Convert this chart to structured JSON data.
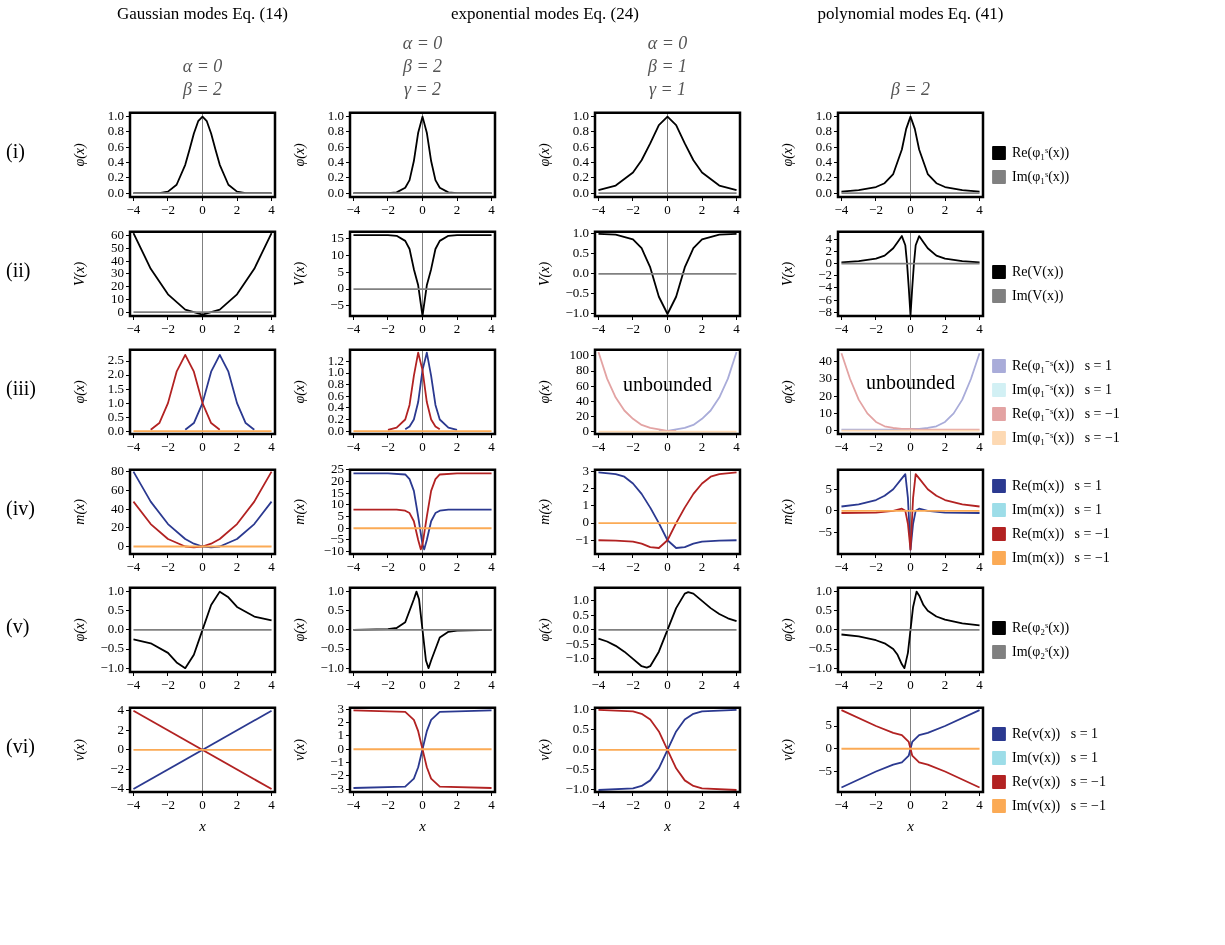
{
  "chart_data": [
    {
      "type": "line",
      "title": "Gaussian modes Eq. (14)",
      "subtitle": "α = 0\nβ = 2",
      "ylabel": "φ(x)",
      "annotations": [
        "(i)"
      ],
      "xlim": [
        -4.2,
        4.2
      ],
      "xticks": [
        -4,
        -2,
        0,
        2,
        4
      ],
      "ylim": [
        -0.05,
        1.05
      ],
      "yticks": [
        {
          "value": 0,
          "label": "0.0"
        },
        0.2,
        0.4,
        0.6,
        0.8,
        {
          "value": 1,
          "label": "1.0"
        }
      ],
      "ref_lines": [
        {
          "axis": "x",
          "value": 0,
          "color": "#808080"
        }
      ],
      "series": [
        {
          "color": "#000000",
          "x": [
            -4,
            -3,
            -2.5,
            -2,
            -1.5,
            -1,
            -0.75,
            -0.5,
            -0.25,
            0,
            0.25,
            0.5,
            0.75,
            1,
            1.5,
            2,
            2.5,
            3,
            4
          ],
          "values": [
            0,
            0,
            0,
            0.02,
            0.11,
            0.37,
            0.57,
            0.78,
            0.94,
            1,
            0.94,
            0.78,
            0.57,
            0.37,
            0.11,
            0.02,
            0,
            0,
            0
          ]
        },
        {
          "color": "#808080",
          "x": [
            -4,
            4
          ],
          "values": [
            0,
            0
          ]
        }
      ]
    },
    {
      "type": "line",
      "title": "exponential modes Eq. (24)",
      "subtitle": "α = 0\nβ = 2\nγ = 2",
      "ylabel": "φ(x)",
      "xlim": [
        -4.2,
        4.2
      ],
      "xticks": [
        -4,
        -2,
        0,
        2,
        4
      ],
      "ylim": [
        -0.05,
        1.05
      ],
      "yticks": [
        {
          "value": 0,
          "label": "0.0"
        },
        0.2,
        0.4,
        0.6,
        0.8,
        {
          "value": 1,
          "label": "1.0"
        }
      ],
      "ref_lines": [
        {
          "axis": "x",
          "value": 0,
          "color": "#808080"
        }
      ],
      "series": [
        {
          "color": "#000000",
          "x": [
            -4,
            -2,
            -1.5,
            -1,
            -0.75,
            -0.5,
            -0.25,
            0,
            0.25,
            0.5,
            0.75,
            1,
            1.5,
            2,
            4
          ],
          "values": [
            0,
            0,
            0.01,
            0.07,
            0.17,
            0.42,
            0.79,
            1,
            0.79,
            0.42,
            0.17,
            0.07,
            0.01,
            0,
            0
          ]
        },
        {
          "color": "#808080",
          "x": [
            -4,
            4
          ],
          "values": [
            0,
            0
          ]
        }
      ]
    },
    {
      "type": "line",
      "subtitle": "α = 0\nβ = 1\nγ = 1",
      "ylabel": "φ(x)",
      "xlim": [
        -4.2,
        4.2
      ],
      "xticks": [
        -4,
        -2,
        0,
        2,
        4
      ],
      "ylim": [
        -0.05,
        1.05
      ],
      "yticks": [
        {
          "value": 0,
          "label": "0.0"
        },
        0.2,
        0.4,
        0.6,
        0.8,
        {
          "value": 1,
          "label": "1.0"
        }
      ],
      "ref_lines": [
        {
          "axis": "x",
          "value": 0,
          "color": "#808080"
        }
      ],
      "series": [
        {
          "color": "#000000",
          "x": [
            -4,
            -3,
            -2,
            -1.5,
            -1,
            -0.5,
            0,
            0.5,
            1,
            1.5,
            2,
            3,
            4
          ],
          "values": [
            0.04,
            0.1,
            0.27,
            0.43,
            0.65,
            0.89,
            1,
            0.89,
            0.65,
            0.43,
            0.27,
            0.1,
            0.04
          ]
        },
        {
          "color": "#808080",
          "x": [
            -4,
            4
          ],
          "values": [
            0,
            0
          ]
        }
      ]
    },
    {
      "type": "line",
      "title": "polynomial modes Eq. (41)",
      "subtitle": "β = 2",
      "ylabel": "φ(x)",
      "legend": "right",
      "xlim": [
        -4.2,
        4.2
      ],
      "xticks": [
        -4,
        -2,
        0,
        2,
        4
      ],
      "ylim": [
        -0.05,
        1.05
      ],
      "yticks": [
        {
          "value": 0,
          "label": "0.0"
        },
        0.2,
        0.4,
        0.6,
        0.8,
        {
          "value": 1,
          "label": "1.0"
        }
      ],
      "ref_lines": [
        {
          "axis": "x",
          "value": 0,
          "color": "#808080"
        }
      ],
      "series": [
        {
          "name": "Re(φ₁ˢ(x))",
          "color": "#000000",
          "x": [
            -4,
            -3,
            -2,
            -1.5,
            -1,
            -0.5,
            -0.25,
            0,
            0.25,
            0.5,
            1,
            1.5,
            2,
            3,
            4
          ],
          "values": [
            0.02,
            0.04,
            0.08,
            0.13,
            0.25,
            0.57,
            0.84,
            1,
            0.84,
            0.57,
            0.25,
            0.13,
            0.08,
            0.04,
            0.02
          ]
        },
        {
          "name": "Im(φ₁ˢ(x))",
          "color": "#808080",
          "x": [
            -4,
            4
          ],
          "values": [
            0,
            0
          ]
        }
      ]
    },
    {
      "type": "line",
      "ylabel": "V(x)",
      "annotations": [
        "(ii)"
      ],
      "xlim": [
        -4.2,
        4.2
      ],
      "xticks": [
        -4,
        -2,
        0,
        2,
        4
      ],
      "ylim": [
        -3,
        63
      ],
      "yticks": [
        0,
        10,
        20,
        30,
        40,
        50,
        60
      ],
      "ref_lines": [
        {
          "axis": "x",
          "value": 0,
          "color": "#808080"
        }
      ],
      "series": [
        {
          "color": "#000000",
          "x": [
            -4,
            -3,
            -2,
            -1,
            0,
            1,
            2,
            3,
            4
          ],
          "values": [
            62,
            34,
            14,
            2,
            -2,
            2,
            14,
            34,
            62
          ]
        },
        {
          "color": "#808080",
          "x": [
            -4,
            4
          ],
          "values": [
            0,
            0
          ]
        }
      ]
    },
    {
      "type": "line",
      "ylabel": "V(x)",
      "xlim": [
        -4.2,
        4.2
      ],
      "xticks": [
        -4,
        -2,
        0,
        2,
        4
      ],
      "ylim": [
        -8,
        17
      ],
      "yticks": [
        -5,
        0,
        5,
        10,
        15
      ],
      "ref_lines": [
        {
          "axis": "x",
          "value": 0,
          "color": "#808080"
        }
      ],
      "series": [
        {
          "color": "#000000",
          "x": [
            -4,
            -2,
            -1.5,
            -1,
            -0.75,
            -0.5,
            -0.25,
            0,
            0.25,
            0.5,
            0.75,
            1,
            1.5,
            2,
            4
          ],
          "values": [
            16,
            16,
            15.8,
            14.3,
            11.9,
            5.9,
            1.1,
            -8,
            1.1,
            5.9,
            11.9,
            14.3,
            15.8,
            16,
            16
          ]
        },
        {
          "color": "#808080",
          "x": [
            -4,
            4
          ],
          "values": [
            0,
            0
          ]
        }
      ]
    },
    {
      "type": "line",
      "ylabel": "V(x)",
      "xlim": [
        -4.2,
        4.2
      ],
      "xticks": [
        -4,
        -2,
        0,
        2,
        4
      ],
      "ylim": [
        -1.05,
        1.05
      ],
      "yticks": [
        {
          "value": -1,
          "label": "−1.0"
        },
        -0.5,
        {
          "value": 0,
          "label": "0.0"
        },
        0.5,
        {
          "value": 1,
          "label": "1.0"
        }
      ],
      "ref_lines": [
        {
          "axis": "x",
          "value": 0,
          "color": "#808080"
        }
      ],
      "series": [
        {
          "color": "#000000",
          "x": [
            -4,
            -3,
            -2,
            -1.5,
            -1,
            -0.5,
            0,
            0.5,
            1,
            1.5,
            2,
            3,
            4
          ],
          "values": [
            1,
            0.98,
            0.86,
            0.64,
            0.16,
            -0.57,
            -1,
            -0.57,
            0.16,
            0.64,
            0.86,
            0.98,
            1
          ]
        },
        {
          "color": "#808080",
          "x": [
            -4,
            4
          ],
          "values": [
            0,
            0
          ]
        }
      ]
    },
    {
      "type": "line",
      "ylabel": "V(x)",
      "legend": "right",
      "xlim": [
        -4.2,
        4.2
      ],
      "xticks": [
        -4,
        -2,
        0,
        2,
        4
      ],
      "ylim": [
        -8.6,
        5.2
      ],
      "yticks": [
        -8,
        -6,
        -4,
        -2,
        0,
        2,
        4
      ],
      "ref_lines": [
        {
          "axis": "x",
          "value": 0,
          "color": "#808080"
        }
      ],
      "series": [
        {
          "name": "Re(V(x))",
          "color": "#000000",
          "x": [
            -4,
            -3,
            -2,
            -1.5,
            -1,
            -0.75,
            -0.5,
            -0.3,
            -0.2,
            -0.1,
            0,
            0.1,
            0.2,
            0.3,
            0.5,
            0.75,
            1,
            1.5,
            2,
            3,
            4
          ],
          "values": [
            0.2,
            0.4,
            0.8,
            1.3,
            2.5,
            3.5,
            4.5,
            3,
            0,
            -4,
            -8.5,
            -4,
            0,
            3,
            4.5,
            3.5,
            2.5,
            1.3,
            0.8,
            0.4,
            0.2
          ]
        },
        {
          "name": "Im(V(x))",
          "color": "#808080",
          "x": [
            -4,
            4
          ],
          "values": [
            0,
            0
          ]
        }
      ]
    },
    {
      "type": "line",
      "ylabel": "φ(x)",
      "annotations": [
        "(iii)"
      ],
      "xlim": [
        -4.2,
        4.2
      ],
      "xticks": [
        -4,
        -2,
        0,
        2,
        4
      ],
      "ylim": [
        -0.1,
        2.9
      ],
      "yticks": [
        {
          "value": 0,
          "label": "0.0"
        },
        0.5,
        {
          "value": 1,
          "label": "1.0"
        },
        1.5,
        {
          "value": 2,
          "label": "2.0"
        },
        2.5
      ],
      "ref_lines": [
        {
          "axis": "x",
          "value": 0,
          "color": "#808080"
        }
      ],
      "series": [
        {
          "color": "#2b3990",
          "x": [
            -1,
            -0.5,
            0,
            0.5,
            1,
            1.5,
            2,
            2.5,
            3
          ],
          "values": [
            0.05,
            0.29,
            1,
            2.12,
            2.72,
            2.12,
            1,
            0.29,
            0.05
          ]
        },
        {
          "color": "#b22222",
          "x": [
            -3,
            -2.5,
            -2,
            -1.5,
            -1,
            -0.5,
            0,
            0.5,
            1
          ],
          "values": [
            0.05,
            0.29,
            1,
            2.12,
            2.72,
            2.12,
            1,
            0.29,
            0.05
          ]
        },
        {
          "color": "#fbaa55",
          "x": [
            -4,
            4
          ],
          "values": [
            0,
            0
          ]
        }
      ]
    },
    {
      "type": "line",
      "ylabel": "φ(x)",
      "xlim": [
        -4.2,
        4.2
      ],
      "xticks": [
        -4,
        -2,
        0,
        2,
        4
      ],
      "ylim": [
        -0.05,
        1.4
      ],
      "yticks": [
        {
          "value": 0,
          "label": "0.0"
        },
        0.2,
        0.4,
        0.6,
        0.8,
        {
          "value": 1,
          "label": "1.0"
        },
        1.2
      ],
      "ref_lines": [
        {
          "axis": "x",
          "value": 0,
          "color": "#808080"
        }
      ],
      "series": [
        {
          "color": "#2b3990",
          "x": [
            -1,
            -0.75,
            -0.5,
            -0.25,
            0,
            0.25,
            0.5,
            0.75,
            1,
            1.5,
            2
          ],
          "values": [
            0.03,
            0.08,
            0.2,
            0.5,
            1.05,
            1.35,
            0.95,
            0.45,
            0.2,
            0.06,
            0.02
          ]
        },
        {
          "color": "#b22222",
          "x": [
            -2,
            -1.5,
            -1,
            -0.75,
            -0.5,
            -0.25,
            0,
            0.25,
            0.5,
            0.75,
            1
          ],
          "values": [
            0.02,
            0.06,
            0.2,
            0.45,
            0.95,
            1.35,
            1.05,
            0.5,
            0.2,
            0.08,
            0.03
          ]
        },
        {
          "color": "#fbaa55",
          "x": [
            -4,
            4
          ],
          "values": [
            0,
            0
          ]
        }
      ]
    },
    {
      "type": "line",
      "ylabel": "φ(x)",
      "annotations": [
        {
          "text": "unbounded",
          "x": 0,
          "y": 60
        }
      ],
      "xlim": [
        -4.2,
        4.2
      ],
      "xticks": [
        -4,
        -2,
        0,
        2,
        4
      ],
      "ylim": [
        -3,
        108
      ],
      "yticks": [
        0,
        20,
        40,
        60,
        80,
        100
      ],
      "ref_lines": [
        {
          "axis": "x",
          "value": 0,
          "color": "#b0b0b0"
        }
      ],
      "series": [
        {
          "color": "#a9acd9",
          "x": [
            -0.5,
            0,
            0.5,
            1,
            1.5,
            2,
            2.5,
            3,
            3.5,
            4
          ],
          "values": [
            1,
            1,
            3,
            5,
            9,
            17,
            28,
            45,
            70,
            105
          ]
        },
        {
          "color": "#e3a3a3",
          "x": [
            -4,
            -3.5,
            -3,
            -2.5,
            -2,
            -1.5,
            -1,
            -0.5,
            0,
            0.5
          ],
          "values": [
            105,
            70,
            45,
            28,
            17,
            9,
            5,
            3,
            1,
            1
          ]
        },
        {
          "color": "#fdd9b3",
          "x": [
            -4,
            4
          ],
          "values": [
            0,
            0
          ]
        }
      ]
    },
    {
      "type": "line",
      "ylabel": "φ(x)",
      "legend": "right",
      "annotations": [
        {
          "text": "unbounded",
          "x": 0,
          "y": 27
        }
      ],
      "xlim": [
        -4.2,
        4.2
      ],
      "xticks": [
        -4,
        -2,
        0,
        2,
        4
      ],
      "ylim": [
        -2,
        47
      ],
      "yticks": [
        0,
        10,
        20,
        30,
        40
      ],
      "ref_lines": [
        {
          "axis": "x",
          "value": 0,
          "color": "#b0b0b0"
        }
      ],
      "series": [
        {
          "name": "Re(φ₁⁻ˢ(x))   s = 1",
          "color": "#a9acd9",
          "x": [
            -4,
            -3.5,
            -3,
            -2.5,
            -2,
            -1.5,
            -1,
            -0.5,
            0,
            0.5,
            1,
            1.5,
            2,
            2.5,
            3,
            3.5,
            4
          ],
          "values": [
            0.5,
            0.5,
            0.5,
            0.5,
            0.5,
            0.5,
            0.5,
            0.5,
            1,
            1,
            1.5,
            2.5,
            5,
            10,
            18,
            30,
            45
          ]
        },
        {
          "name": "Im(φ₁⁻ˢ(x))   s = 1",
          "color": "#d2f0f4"
        },
        {
          "name": "Re(φ₁⁻ˢ(x))   s = −1",
          "color": "#e3a3a3",
          "x": [
            -4,
            -3.5,
            -3,
            -2.5,
            -2,
            -1.5,
            -1,
            -0.5,
            0,
            0.5,
            1,
            1.5,
            2,
            2.5,
            3,
            3.5,
            4
          ],
          "values": [
            45,
            30,
            18,
            10,
            5,
            2.5,
            1.5,
            1,
            1,
            0.5,
            0.5,
            0.5,
            0.5,
            0.5,
            0.5,
            0.5,
            0.5
          ]
        },
        {
          "name": "Im(φ₁⁻ˢ(x))   s = −1",
          "color": "#fdd9b3",
          "x": [
            -4,
            4
          ],
          "values": [
            0,
            0
          ]
        }
      ]
    },
    {
      "type": "line",
      "ylabel": "m(x)",
      "annotations": [
        "(iv)"
      ],
      "xlim": [
        -4.2,
        4.2
      ],
      "xticks": [
        -4,
        -2,
        0,
        2,
        4
      ],
      "ylim": [
        -8,
        82
      ],
      "yticks": [
        0,
        20,
        40,
        60,
        80
      ],
      "ref_lines": [
        {
          "axis": "x",
          "value": 0,
          "color": "#808080"
        }
      ],
      "series": [
        {
          "color": "#2b3990",
          "x": [
            -4,
            -3,
            -2,
            -1,
            -0.5,
            0,
            0.5,
            1,
            2,
            3,
            4
          ],
          "values": [
            80,
            48,
            24,
            8,
            3,
            0,
            -1,
            0,
            8,
            24,
            48
          ]
        },
        {
          "color": "#b22222",
          "x": [
            -4,
            -3,
            -2,
            -1,
            -0.5,
            0,
            0.5,
            1,
            2,
            3,
            4
          ],
          "values": [
            48,
            24,
            8,
            0,
            -1,
            0,
            3,
            8,
            24,
            48,
            80
          ]
        },
        {
          "color": "#fbaa55",
          "x": [
            -4,
            4
          ],
          "values": [
            0,
            0
          ]
        }
      ]
    },
    {
      "type": "line",
      "ylabel": "m(x)",
      "xlim": [
        -4.2,
        4.2
      ],
      "xticks": [
        -4,
        -2,
        0,
        2,
        4
      ],
      "ylim": [
        -11,
        25
      ],
      "yticks": [
        -10,
        -5,
        0,
        5,
        10,
        15,
        20,
        25
      ],
      "ref_lines": [
        {
          "axis": "x",
          "value": 0,
          "color": "#808080"
        }
      ],
      "series": [
        {
          "color": "#2b3990",
          "x": [
            -4,
            -2,
            -1,
            -0.75,
            -0.5,
            -0.25,
            0,
            0.1,
            0.25,
            0.5,
            0.75,
            1,
            1.5,
            4
          ],
          "values": [
            23.5,
            23.5,
            23,
            21,
            16,
            5,
            -7,
            -9,
            -5,
            3,
            6.5,
            7.5,
            8,
            8
          ]
        },
        {
          "color": "#b22222",
          "x": [
            -4,
            -1.5,
            -1,
            -0.75,
            -0.5,
            -0.25,
            -0.1,
            0,
            0.25,
            0.5,
            0.75,
            1,
            2,
            4
          ],
          "values": [
            8,
            8,
            7.5,
            6.5,
            3,
            -5,
            -9,
            -7,
            5,
            16,
            21,
            23,
            23.5,
            23.5
          ]
        },
        {
          "color": "#fbaa55",
          "x": [
            -4,
            4
          ],
          "values": [
            0,
            0
          ]
        }
      ]
    },
    {
      "type": "line",
      "ylabel": "m(x)",
      "xlim": [
        -4.2,
        4.2
      ],
      "xticks": [
        -4,
        -2,
        0,
        2,
        4
      ],
      "ylim": [
        -1.8,
        3.1
      ],
      "yticks": [
        -1,
        0,
        1,
        2,
        3
      ],
      "ref_lines": [
        {
          "axis": "x",
          "value": 0,
          "color": "#808080"
        }
      ],
      "series": [
        {
          "color": "#2b3990",
          "x": [
            -4,
            -3,
            -2.5,
            -2,
            -1.5,
            -1,
            -0.5,
            0,
            0.5,
            1,
            1.5,
            2,
            3,
            4
          ],
          "values": [
            2.95,
            2.85,
            2.7,
            2.3,
            1.7,
            0.9,
            0,
            -1,
            -1.45,
            -1.4,
            -1.2,
            -1.08,
            -1.02,
            -1
          ]
        },
        {
          "color": "#b22222",
          "x": [
            -4,
            -3,
            -2,
            -1.5,
            -1,
            -0.5,
            0,
            0.5,
            1,
            1.5,
            2,
            2.5,
            3,
            4
          ],
          "values": [
            -1,
            -1.02,
            -1.08,
            -1.2,
            -1.4,
            -1.45,
            -1,
            0,
            0.9,
            1.7,
            2.3,
            2.7,
            2.85,
            2.95
          ]
        },
        {
          "color": "#fbaa55",
          "x": [
            -4,
            4
          ],
          "values": [
            0,
            0
          ]
        }
      ]
    },
    {
      "type": "line",
      "ylabel": "m(x)",
      "legend": "right",
      "xlim": [
        -4.2,
        4.2
      ],
      "xticks": [
        -4,
        -2,
        0,
        2,
        4
      ],
      "ylim": [
        -10,
        9.5
      ],
      "yticks": [
        -5,
        0,
        5
      ],
      "ref_lines": [
        {
          "axis": "x",
          "value": 0,
          "color": "#808080"
        }
      ],
      "series": [
        {
          "name": "Re(m(x))   s = 1",
          "color": "#2b3990",
          "x": [
            -4,
            -3,
            -2,
            -1.5,
            -1,
            -0.5,
            -0.3,
            -0.15,
            0,
            0.15,
            0.3,
            0.5,
            1,
            2,
            4
          ],
          "values": [
            1,
            1.5,
            2.5,
            3.5,
            5,
            7.5,
            8.5,
            3,
            -9,
            -3,
            0,
            0.5,
            0,
            -0.4,
            -0.5
          ]
        },
        {
          "name": "Im(m(x))   s = 1",
          "color": "#9ddde8"
        },
        {
          "name": "Re(m(x))   s = −1",
          "color": "#b22222",
          "x": [
            -4,
            -2,
            -1,
            -0.5,
            -0.3,
            -0.15,
            0,
            0.15,
            0.3,
            0.5,
            1,
            1.5,
            2,
            3,
            4
          ],
          "values": [
            -0.5,
            -0.4,
            0,
            0.5,
            0,
            -3,
            -9,
            3,
            8.5,
            7.5,
            5,
            3.5,
            2.5,
            1.5,
            1
          ]
        },
        {
          "name": "Im(m(x))   s = −1",
          "color": "#fbaa55",
          "x": [
            -4,
            4
          ],
          "values": [
            0,
            0
          ]
        }
      ]
    },
    {
      "type": "line",
      "ylabel": "φ(x)",
      "annotations": [
        "(v)"
      ],
      "xlim": [
        -4.2,
        4.2
      ],
      "xticks": [
        -4,
        -2,
        0,
        2,
        4
      ],
      "ylim": [
        -1.1,
        1.1
      ],
      "yticks": [
        {
          "value": -1,
          "label": "−1.0"
        },
        -0.5,
        {
          "value": 0,
          "label": "0.0"
        },
        0.5,
        {
          "value": 1,
          "label": "1.0"
        }
      ],
      "ref_lines": [
        {
          "axis": "x",
          "value": 0,
          "color": "#808080"
        }
      ],
      "series": [
        {
          "color": "#000000",
          "x": [
            -4,
            -3,
            -2,
            -1.5,
            -1,
            -0.5,
            0,
            0.5,
            1,
            1.5,
            2,
            3,
            4
          ],
          "values": [
            -0.25,
            -0.35,
            -0.6,
            -0.85,
            -1,
            -0.65,
            0,
            0.65,
            1,
            0.85,
            0.6,
            0.35,
            0.25
          ]
        },
        {
          "color": "#808080",
          "x": [
            -4,
            4
          ],
          "values": [
            0,
            0
          ]
        }
      ]
    },
    {
      "type": "line",
      "ylabel": "φ(x)",
      "xlim": [
        -4.2,
        4.2
      ],
      "xticks": [
        -4,
        -2,
        0,
        2,
        4
      ],
      "ylim": [
        -1.1,
        1.1
      ],
      "yticks": [
        {
          "value": -1,
          "label": "−1.0"
        },
        -0.5,
        {
          "value": 0,
          "label": "0.0"
        },
        0.5,
        {
          "value": 1,
          "label": "1.0"
        }
      ],
      "ref_lines": [
        {
          "axis": "x",
          "value": 0,
          "color": "#808080"
        }
      ],
      "series": [
        {
          "color": "#000000",
          "x": [
            -4,
            -2,
            -1.5,
            -1,
            -0.5,
            -0.35,
            -0.2,
            0,
            0.2,
            0.35,
            0.5,
            1,
            1.5,
            2,
            4
          ],
          "values": [
            0,
            0.02,
            0.05,
            0.2,
            0.8,
            1,
            0.8,
            0,
            -0.8,
            -1,
            -0.8,
            -0.2,
            -0.05,
            -0.02,
            0
          ]
        },
        {
          "color": "#808080",
          "x": [
            -4,
            4
          ],
          "values": [
            0,
            0
          ]
        }
      ]
    },
    {
      "type": "line",
      "ylabel": "φ(x)",
      "xlim": [
        -4.2,
        4.2
      ],
      "xticks": [
        -4,
        -2,
        0,
        2,
        4
      ],
      "ylim": [
        -1.45,
        1.45
      ],
      "yticks": [
        {
          "value": -1,
          "label": "−1.0"
        },
        -0.5,
        {
          "value": 0,
          "label": "0.0"
        },
        0.5,
        {
          "value": 1,
          "label": "1.0"
        }
      ],
      "ref_lines": [
        {
          "axis": "x",
          "value": 0,
          "color": "#808080"
        }
      ],
      "series": [
        {
          "color": "#000000",
          "x": [
            -4,
            -3.5,
            -3,
            -2.5,
            -2,
            -1.5,
            -1.2,
            -1,
            -0.5,
            0,
            0.5,
            1,
            1.2,
            1.5,
            2,
            2.5,
            3,
            3.5,
            4
          ],
          "values": [
            -0.3,
            -0.4,
            -0.55,
            -0.75,
            -1,
            -1.25,
            -1.3,
            -1.25,
            -0.75,
            0,
            0.75,
            1.25,
            1.3,
            1.25,
            1,
            0.75,
            0.55,
            0.4,
            0.3
          ]
        },
        {
          "color": "#808080",
          "x": [
            -4,
            4
          ],
          "values": [
            0,
            0
          ]
        }
      ]
    },
    {
      "type": "line",
      "ylabel": "φ(x)",
      "legend": "right",
      "xlim": [
        -4.2,
        4.2
      ],
      "xticks": [
        -4,
        -2,
        0,
        2,
        4
      ],
      "ylim": [
        -1.1,
        1.1
      ],
      "yticks": [
        {
          "value": -1,
          "label": "−1.0"
        },
        -0.5,
        {
          "value": 0,
          "label": "0.0"
        },
        0.5,
        {
          "value": 1,
          "label": "1.0"
        }
      ],
      "ref_lines": [
        {
          "axis": "x",
          "value": 0,
          "color": "#808080"
        }
      ],
      "series": [
        {
          "name": "Re(φ₂ˢ(x))",
          "color": "#000000",
          "x": [
            -4,
            -3,
            -2,
            -1.5,
            -1,
            -0.75,
            -0.5,
            -0.35,
            -0.15,
            0,
            0.15,
            0.35,
            0.5,
            0.75,
            1,
            1.5,
            2,
            3,
            4
          ],
          "values": [
            -0.12,
            -0.17,
            -0.27,
            -0.35,
            -0.5,
            -0.65,
            -0.9,
            -1,
            -0.6,
            0,
            0.6,
            1,
            0.9,
            0.65,
            0.5,
            0.35,
            0.27,
            0.17,
            0.12
          ]
        },
        {
          "name": "Im(φ₂ˢ(x))",
          "color": "#808080",
          "x": [
            -4,
            4
          ],
          "values": [
            0,
            0
          ]
        }
      ]
    },
    {
      "type": "line",
      "ylabel": "v(x)",
      "xlabel": "x",
      "annotations": [
        "(vi)"
      ],
      "xlim": [
        -4.2,
        4.2
      ],
      "xticks": [
        -4,
        -2,
        0,
        2,
        4
      ],
      "ylim": [
        -4.3,
        4.3
      ],
      "yticks": [
        -4,
        -2,
        0,
        2,
        4
      ],
      "ref_lines": [
        {
          "axis": "x",
          "value": 0,
          "color": "#808080"
        }
      ],
      "series": [
        {
          "color": "#2b3990",
          "x": [
            -4,
            4
          ],
          "values": [
            -4,
            4
          ]
        },
        {
          "color": "#b22222",
          "x": [
            -4,
            4
          ],
          "values": [
            4,
            -4
          ]
        },
        {
          "color": "#fbaa55",
          "x": [
            -4,
            4
          ],
          "values": [
            0,
            0
          ]
        }
      ]
    },
    {
      "type": "line",
      "ylabel": "v(x)",
      "xlabel": "x",
      "xlim": [
        -4.2,
        4.2
      ],
      "xticks": [
        -4,
        -2,
        0,
        2,
        4
      ],
      "ylim": [
        -3.2,
        3.1
      ],
      "yticks": [
        -3,
        -2,
        -1,
        0,
        1,
        2,
        3
      ],
      "ref_lines": [
        {
          "axis": "x",
          "value": 0,
          "color": "#808080"
        }
      ],
      "series": [
        {
          "color": "#2b3990",
          "x": [
            -4,
            -1,
            -0.5,
            -0.25,
            0,
            0.25,
            0.5,
            1,
            4
          ],
          "values": [
            -2.9,
            -2.8,
            -2.2,
            -1.35,
            0,
            1.35,
            2.2,
            2.8,
            2.9
          ]
        },
        {
          "color": "#b22222",
          "x": [
            -4,
            -1,
            -0.5,
            -0.25,
            0,
            0.25,
            0.5,
            1,
            4
          ],
          "values": [
            2.9,
            2.8,
            2.2,
            1.35,
            0,
            -1.35,
            -2.2,
            -2.8,
            -2.9
          ]
        },
        {
          "color": "#fbaa55",
          "x": [
            -4,
            4
          ],
          "values": [
            0,
            0
          ]
        }
      ]
    },
    {
      "type": "line",
      "ylabel": "v(x)",
      "xlabel": "x",
      "xlim": [
        -4.2,
        4.2
      ],
      "xticks": [
        -4,
        -2,
        0,
        2,
        4
      ],
      "ylim": [
        -1.05,
        1.05
      ],
      "yticks": [
        {
          "value": -1,
          "label": "−1.0"
        },
        -0.5,
        {
          "value": 0,
          "label": "0.0"
        },
        0.5,
        {
          "value": 1,
          "label": "1.0"
        }
      ],
      "ref_lines": [
        {
          "axis": "x",
          "value": 0,
          "color": "#808080"
        }
      ],
      "series": [
        {
          "color": "#2b3990",
          "x": [
            -4,
            -2,
            -1.5,
            -1,
            -0.5,
            0,
            0.5,
            1,
            1.5,
            2,
            4
          ],
          "values": [
            -1,
            -0.96,
            -0.9,
            -0.76,
            -0.46,
            0,
            0.46,
            0.76,
            0.9,
            0.96,
            1
          ]
        },
        {
          "color": "#b22222",
          "x": [
            -4,
            -2,
            -1.5,
            -1,
            -0.5,
            0,
            0.5,
            1,
            1.5,
            2,
            4
          ],
          "values": [
            1,
            0.96,
            0.9,
            0.76,
            0.46,
            0,
            -0.46,
            -0.76,
            -0.9,
            -0.96,
            -1
          ]
        },
        {
          "color": "#fbaa55",
          "x": [
            -4,
            4
          ],
          "values": [
            0,
            0
          ]
        }
      ]
    },
    {
      "type": "line",
      "ylabel": "v(x)",
      "xlabel": "x",
      "legend": "right",
      "xlim": [
        -4.2,
        4.2
      ],
      "xticks": [
        -4,
        -2,
        0,
        2,
        4
      ],
      "ylim": [
        -9.5,
        9
      ],
      "yticks": [
        -5,
        0,
        5
      ],
      "ref_lines": [
        {
          "axis": "x",
          "value": 0,
          "color": "#808080"
        }
      ],
      "series": [
        {
          "name": "Re(v(x))   s = 1",
          "color": "#2b3990",
          "x": [
            -4,
            -2,
            -1,
            -0.5,
            -0.1,
            0,
            0.1,
            0.5,
            1,
            2,
            4
          ],
          "values": [
            -8.5,
            -5,
            -3.5,
            -3,
            -1.5,
            0,
            1.5,
            3,
            3.5,
            5,
            8.5
          ]
        },
        {
          "name": "Im(v(x))   s = 1",
          "color": "#9ddde8"
        },
        {
          "name": "Re(v(x))   s = −1",
          "color": "#b22222",
          "x": [
            -4,
            -2,
            -1,
            -0.5,
            -0.1,
            0,
            0.1,
            0.5,
            1,
            2,
            4
          ],
          "values": [
            8.5,
            5,
            3.5,
            3,
            1.5,
            0,
            -1.5,
            -3,
            -3.5,
            -5,
            -8.5
          ]
        },
        {
          "name": "Im(v(x))   s = −1",
          "color": "#fbaa55",
          "x": [
            -4,
            4
          ],
          "values": [
            0,
            0
          ]
        }
      ]
    }
  ]
}
